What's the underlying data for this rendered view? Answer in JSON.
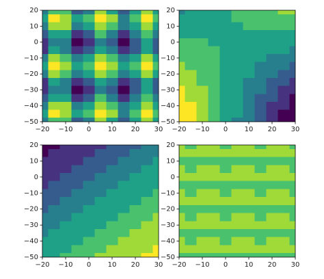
{
  "chart_data": [
    {
      "type": "contour",
      "x": [
        -20,
        -15,
        -10,
        -5,
        0,
        5,
        10,
        15,
        20,
        25,
        30
      ],
      "y": [
        20,
        15,
        10,
        5,
        0,
        -5,
        -10,
        -15,
        -20,
        -25,
        -30,
        -35,
        -40,
        -45,
        -50
      ],
      "z": [
        [
          3,
          5,
          5,
          2,
          3,
          6,
          4,
          2,
          4,
          6,
          4
        ],
        [
          4,
          7,
          6,
          4,
          5,
          7,
          6,
          3,
          5,
          7,
          5
        ],
        [
          3,
          6,
          6,
          3,
          4,
          6,
          5,
          3,
          4,
          6,
          4
        ],
        [
          2,
          4,
          4,
          1,
          2,
          5,
          3,
          1,
          3,
          5,
          3
        ],
        [
          1,
          3,
          3,
          0,
          1,
          3,
          2,
          0,
          2,
          4,
          2
        ],
        [
          1,
          4,
          3,
          1,
          2,
          4,
          3,
          1,
          2,
          4,
          2
        ],
        [
          3,
          6,
          5,
          3,
          4,
          6,
          5,
          3,
          4,
          6,
          4
        ],
        [
          4,
          7,
          6,
          4,
          5,
          7,
          6,
          4,
          5,
          7,
          5
        ],
        [
          3,
          6,
          5,
          3,
          4,
          6,
          5,
          3,
          4,
          6,
          4
        ],
        [
          1,
          4,
          3,
          1,
          2,
          4,
          3,
          1,
          2,
          4,
          2
        ],
        [
          1,
          3,
          3,
          0,
          1,
          3,
          2,
          0,
          2,
          4,
          2
        ],
        [
          2,
          4,
          4,
          1,
          2,
          5,
          3,
          1,
          3,
          5,
          3
        ],
        [
          3,
          6,
          6,
          3,
          4,
          6,
          5,
          3,
          4,
          6,
          4
        ],
        [
          4,
          7,
          6,
          4,
          5,
          7,
          6,
          3,
          5,
          7,
          5
        ],
        [
          3,
          5,
          5,
          2,
          3,
          6,
          4,
          2,
          4,
          6,
          4
        ]
      ],
      "colors": [
        "#440154",
        "#46327e",
        "#365c8d",
        "#277f8e",
        "#1fa187",
        "#4ac16d",
        "#a0da39",
        "#fde725"
      ],
      "xlim": [
        -20,
        30
      ],
      "ylim": [
        -50,
        20
      ],
      "xticks": [
        {
          "value": -20,
          "label": "−20"
        },
        {
          "value": -10,
          "label": "−10"
        },
        0,
        10,
        20,
        30
      ],
      "yticks": [
        {
          "value": -50,
          "label": "−50"
        },
        {
          "value": -40,
          "label": "−40"
        },
        {
          "value": -30,
          "label": "−30"
        },
        {
          "value": -20,
          "label": "−20"
        },
        {
          "value": -10,
          "label": "−10"
        },
        0,
        10,
        20
      ]
    },
    {
      "type": "contour",
      "x": [
        -20,
        -15,
        -10,
        -5,
        0,
        5,
        10,
        15,
        20,
        25,
        30
      ],
      "y": [
        20,
        15,
        10,
        5,
        0,
        -5,
        -10,
        -15,
        -20,
        -25,
        -30,
        -35,
        -40,
        -45,
        -50
      ],
      "z": [
        [
          3,
          4,
          4,
          4,
          4,
          5,
          5,
          5,
          5,
          6,
          6
        ],
        [
          4,
          4,
          4,
          4,
          4,
          5,
          5,
          5,
          5,
          5,
          5
        ],
        [
          4,
          4,
          4,
          4,
          4,
          4,
          5,
          5,
          5,
          5,
          5
        ],
        [
          4,
          4,
          4,
          4,
          4,
          4,
          4,
          4,
          4,
          4,
          4
        ],
        [
          5,
          5,
          5,
          4,
          4,
          4,
          4,
          4,
          4,
          4,
          4
        ],
        [
          5,
          5,
          5,
          5,
          4,
          4,
          4,
          4,
          4,
          4,
          3
        ],
        [
          5,
          5,
          5,
          5,
          4,
          4,
          4,
          4,
          3,
          3,
          3
        ],
        [
          6,
          5,
          5,
          5,
          4,
          4,
          4,
          3,
          3,
          3,
          2
        ],
        [
          6,
          6,
          5,
          5,
          4,
          4,
          4,
          3,
          3,
          2,
          2
        ],
        [
          6,
          6,
          5,
          5,
          4,
          4,
          3,
          3,
          2,
          2,
          1
        ],
        [
          7,
          6,
          6,
          5,
          4,
          4,
          3,
          3,
          2,
          1,
          1
        ],
        [
          7,
          6,
          6,
          5,
          4,
          4,
          3,
          2,
          2,
          1,
          0
        ],
        [
          7,
          7,
          6,
          5,
          4,
          4,
          3,
          2,
          1,
          1,
          0
        ],
        [
          7,
          7,
          6,
          5,
          4,
          4,
          3,
          2,
          1,
          0,
          0
        ],
        [
          7,
          7,
          6,
          5,
          4,
          3,
          3,
          2,
          1,
          0,
          0
        ]
      ],
      "colors": [
        "#440154",
        "#46327e",
        "#365c8d",
        "#277f8e",
        "#1fa187",
        "#4ac16d",
        "#a0da39",
        "#fde725"
      ],
      "xlim": [
        -20,
        30
      ],
      "ylim": [
        -50,
        20
      ],
      "xticks": [
        {
          "value": -20,
          "label": "−20"
        },
        {
          "value": -10,
          "label": "−10"
        },
        0,
        10,
        20,
        30
      ],
      "yticks": [
        {
          "value": -50,
          "label": "−50"
        },
        {
          "value": -40,
          "label": "−40"
        },
        {
          "value": -30,
          "label": "−30"
        },
        {
          "value": -20,
          "label": "−20"
        },
        {
          "value": -10,
          "label": "−10"
        },
        0,
        10,
        20
      ]
    },
    {
      "type": "contour",
      "x": [
        -20,
        -15,
        -10,
        -5,
        0,
        5,
        10,
        15,
        20,
        25,
        30
      ],
      "y": [
        20,
        15,
        10,
        5,
        0,
        -5,
        -10,
        -15,
        -20,
        -25,
        -30,
        -35,
        -40,
        -45,
        -50
      ],
      "z": [
        [
          0,
          0,
          1,
          1,
          1,
          1,
          2,
          2,
          2,
          3,
          3
        ],
        [
          0,
          1,
          1,
          1,
          1,
          2,
          2,
          2,
          3,
          3,
          3
        ],
        [
          1,
          1,
          1,
          1,
          2,
          2,
          2,
          3,
          3,
          3,
          4
        ],
        [
          1,
          1,
          1,
          2,
          2,
          2,
          3,
          3,
          3,
          4,
          4
        ],
        [
          1,
          1,
          2,
          2,
          2,
          3,
          3,
          3,
          4,
          4,
          4
        ],
        [
          1,
          2,
          2,
          2,
          3,
          3,
          3,
          4,
          4,
          4,
          4
        ],
        [
          2,
          2,
          2,
          3,
          3,
          3,
          4,
          4,
          4,
          4,
          5
        ],
        [
          2,
          2,
          3,
          3,
          3,
          4,
          4,
          4,
          4,
          5,
          5
        ],
        [
          2,
          3,
          3,
          3,
          4,
          4,
          4,
          4,
          5,
          5,
          5
        ],
        [
          3,
          3,
          3,
          4,
          4,
          4,
          4,
          5,
          5,
          5,
          6
        ],
        [
          3,
          3,
          4,
          4,
          4,
          4,
          5,
          5,
          5,
          6,
          6
        ],
        [
          3,
          4,
          4,
          4,
          4,
          5,
          5,
          5,
          6,
          6,
          6
        ],
        [
          4,
          4,
          4,
          4,
          5,
          5,
          5,
          6,
          6,
          6,
          6
        ],
        [
          4,
          4,
          4,
          5,
          5,
          5,
          6,
          6,
          6,
          6,
          7
        ],
        [
          4,
          4,
          5,
          5,
          5,
          6,
          6,
          6,
          6,
          7,
          7
        ]
      ],
      "colors": [
        "#440154",
        "#46327e",
        "#365c8d",
        "#277f8e",
        "#1fa187",
        "#4ac16d",
        "#a0da39",
        "#fde725"
      ],
      "xlim": [
        -20,
        30
      ],
      "ylim": [
        -50,
        20
      ],
      "xticks": [
        {
          "value": -20,
          "label": "−20"
        },
        {
          "value": -10,
          "label": "−10"
        },
        0,
        10,
        20,
        30
      ],
      "yticks": [
        {
          "value": -50,
          "label": "−50"
        },
        {
          "value": -40,
          "label": "−40"
        },
        {
          "value": -30,
          "label": "−30"
        },
        {
          "value": -20,
          "label": "−20"
        },
        {
          "value": -10,
          "label": "−10"
        },
        0,
        10,
        20
      ]
    },
    {
      "type": "contour",
      "x": [
        -20,
        -15,
        -10,
        -5,
        0,
        5,
        10,
        15,
        20,
        25,
        30
      ],
      "y": [
        20,
        15,
        10,
        5,
        0,
        -5,
        -10,
        -15,
        -20,
        -25,
        -30,
        -35,
        -40,
        -45,
        -50
      ],
      "z": [
        [
          6,
          5,
          6,
          6,
          5,
          6,
          6,
          5,
          6,
          6,
          5
        ],
        [
          6,
          6,
          6,
          6,
          6,
          6,
          6,
          6,
          6,
          6,
          6
        ],
        [
          5,
          5,
          5,
          5,
          5,
          5,
          5,
          5,
          5,
          5,
          5
        ],
        [
          6,
          5,
          6,
          6,
          5,
          6,
          6,
          5,
          6,
          6,
          5
        ],
        [
          6,
          6,
          6,
          6,
          6,
          6,
          6,
          6,
          6,
          6,
          6
        ],
        [
          5,
          5,
          5,
          5,
          5,
          5,
          5,
          5,
          5,
          5,
          5
        ],
        [
          6,
          5,
          6,
          6,
          5,
          6,
          6,
          5,
          6,
          6,
          5
        ],
        [
          6,
          6,
          6,
          6,
          6,
          6,
          6,
          6,
          6,
          6,
          6
        ],
        [
          5,
          5,
          5,
          5,
          5,
          5,
          5,
          5,
          5,
          5,
          5
        ],
        [
          6,
          5,
          6,
          6,
          5,
          6,
          6,
          5,
          6,
          6,
          5
        ],
        [
          6,
          6,
          6,
          6,
          6,
          6,
          6,
          6,
          6,
          6,
          6
        ],
        [
          5,
          5,
          5,
          5,
          5,
          5,
          5,
          5,
          5,
          5,
          5
        ],
        [
          6,
          5,
          6,
          6,
          5,
          6,
          6,
          5,
          6,
          6,
          5
        ],
        [
          6,
          6,
          6,
          6,
          6,
          6,
          6,
          6,
          6,
          6,
          6
        ],
        [
          5,
          5,
          5,
          5,
          5,
          5,
          5,
          5,
          5,
          5,
          5
        ]
      ],
      "colors": [
        "#440154",
        "#46327e",
        "#365c8d",
        "#277f8e",
        "#1fa187",
        "#4ac16d",
        "#a0da39",
        "#fde725"
      ],
      "xlim": [
        -20,
        30
      ],
      "ylim": [
        -50,
        20
      ],
      "xticks": [
        {
          "value": -20,
          "label": "−20"
        },
        {
          "value": -10,
          "label": "−10"
        },
        0,
        10,
        20,
        30
      ],
      "yticks": [
        {
          "value": -50,
          "label": "−50"
        },
        {
          "value": -40,
          "label": "−40"
        },
        {
          "value": -30,
          "label": "−30"
        },
        {
          "value": -20,
          "label": "−20"
        },
        {
          "value": -10,
          "label": "−10"
        },
        0,
        10,
        20
      ]
    }
  ]
}
